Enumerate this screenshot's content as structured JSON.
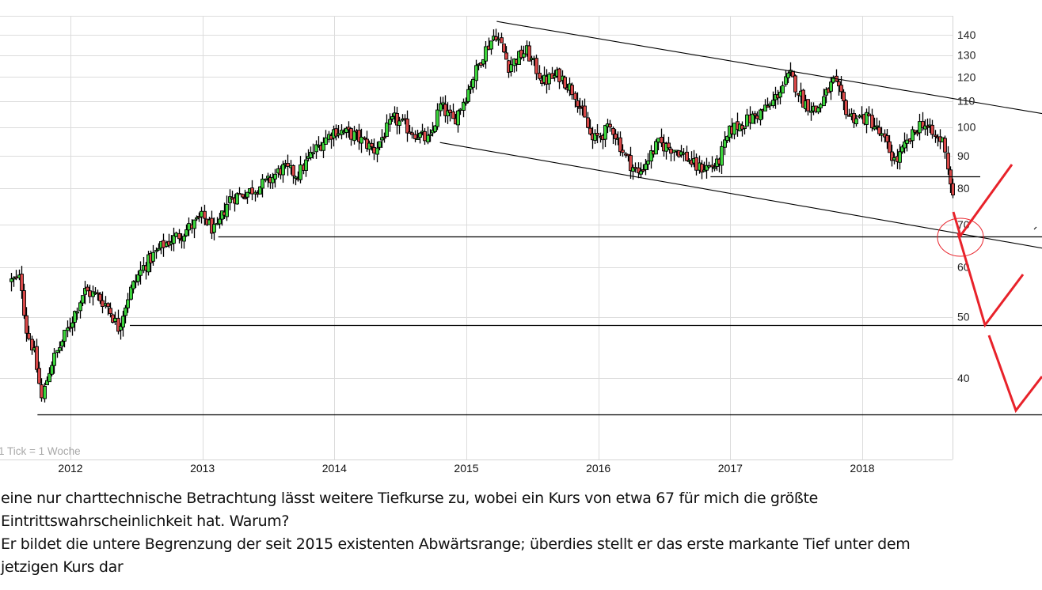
{
  "chart_data": {
    "type": "candlestick",
    "title": "",
    "xlabel": "",
    "ylabel": "",
    "note": "1 Tick = 1 Woche",
    "x_ticks": [
      "2012",
      "2013",
      "2014",
      "2015",
      "2016",
      "2017",
      "2018"
    ],
    "y_ticks": [
      40,
      50,
      60,
      70,
      80,
      90,
      100,
      110,
      120,
      130,
      140
    ],
    "y_scale": "log",
    "ylim": [
      33,
      148
    ],
    "grid": true,
    "colors": {
      "up": "#3cd43c",
      "down": "#d84848",
      "grid": "#dcdcdc",
      "annotation": "#e8222a",
      "line": "#000000"
    },
    "approx_weekly_closes": [
      {
        "t": 2011.55,
        "v": 57
      },
      {
        "t": 2011.62,
        "v": 57.5
      },
      {
        "t": 2011.66,
        "v": 48
      },
      {
        "t": 2011.72,
        "v": 44
      },
      {
        "t": 2011.78,
        "v": 37
      },
      {
        "t": 2011.85,
        "v": 42
      },
      {
        "t": 2011.92,
        "v": 45
      },
      {
        "t": 2012.0,
        "v": 49
      },
      {
        "t": 2012.1,
        "v": 55
      },
      {
        "t": 2012.2,
        "v": 54
      },
      {
        "t": 2012.28,
        "v": 52
      },
      {
        "t": 2012.36,
        "v": 48
      },
      {
        "t": 2012.45,
        "v": 55
      },
      {
        "t": 2012.55,
        "v": 60
      },
      {
        "t": 2012.7,
        "v": 65
      },
      {
        "t": 2012.85,
        "v": 68
      },
      {
        "t": 2013.0,
        "v": 72
      },
      {
        "t": 2013.1,
        "v": 68
      },
      {
        "t": 2013.2,
        "v": 77
      },
      {
        "t": 2013.35,
        "v": 79
      },
      {
        "t": 2013.5,
        "v": 82
      },
      {
        "t": 2013.6,
        "v": 86
      },
      {
        "t": 2013.72,
        "v": 84
      },
      {
        "t": 2013.85,
        "v": 92
      },
      {
        "t": 2014.0,
        "v": 99
      },
      {
        "t": 2014.15,
        "v": 97
      },
      {
        "t": 2014.3,
        "v": 92
      },
      {
        "t": 2014.45,
        "v": 103
      },
      {
        "t": 2014.6,
        "v": 98
      },
      {
        "t": 2014.72,
        "v": 95
      },
      {
        "t": 2014.8,
        "v": 108
      },
      {
        "t": 2014.9,
        "v": 102
      },
      {
        "t": 2015.0,
        "v": 113
      },
      {
        "t": 2015.12,
        "v": 130
      },
      {
        "t": 2015.22,
        "v": 141
      },
      {
        "t": 2015.32,
        "v": 125
      },
      {
        "t": 2015.45,
        "v": 132
      },
      {
        "t": 2015.58,
        "v": 118
      },
      {
        "t": 2015.7,
        "v": 121
      },
      {
        "t": 2015.82,
        "v": 113
      },
      {
        "t": 2015.95,
        "v": 95
      },
      {
        "t": 2016.1,
        "v": 100
      },
      {
        "t": 2016.2,
        "v": 90
      },
      {
        "t": 2016.3,
        "v": 84
      },
      {
        "t": 2016.45,
        "v": 94
      },
      {
        "t": 2016.6,
        "v": 92
      },
      {
        "t": 2016.75,
        "v": 86
      },
      {
        "t": 2016.9,
        "v": 87
      },
      {
        "t": 2017.0,
        "v": 99
      },
      {
        "t": 2017.15,
        "v": 103
      },
      {
        "t": 2017.3,
        "v": 108
      },
      {
        "t": 2017.45,
        "v": 121
      },
      {
        "t": 2017.55,
        "v": 110
      },
      {
        "t": 2017.65,
        "v": 106
      },
      {
        "t": 2017.78,
        "v": 118
      },
      {
        "t": 2017.9,
        "v": 104
      },
      {
        "t": 2018.05,
        "v": 103
      },
      {
        "t": 2018.15,
        "v": 96
      },
      {
        "t": 2018.25,
        "v": 88
      },
      {
        "t": 2018.35,
        "v": 95
      },
      {
        "t": 2018.45,
        "v": 102
      },
      {
        "t": 2018.55,
        "v": 96
      },
      {
        "t": 2018.62,
        "v": 95
      },
      {
        "t": 2018.66,
        "v": 82
      },
      {
        "t": 2018.7,
        "v": 77
      }
    ],
    "annotations": {
      "horizontal_lines": [
        {
          "label": "support-35",
          "value": 35,
          "from": 2011.75
        },
        {
          "label": "support-48",
          "value": 48.5,
          "from": 2012.45
        },
        {
          "label": "support-67",
          "value": 67,
          "from": 2013.12
        },
        {
          "label": "support-83",
          "value": 83.5,
          "from": 2016.85
        }
      ],
      "trend_lines": [
        {
          "label": "upper-channel",
          "from": {
            "t": 2015.23,
            "v": 147
          },
          "to": {
            "t": 2019.6,
            "v": 103
          }
        },
        {
          "label": "lower-channel",
          "from": {
            "t": 2014.8,
            "v": 94.5
          },
          "to": {
            "t": 2019.6,
            "v": 63
          }
        }
      ],
      "target_circle": {
        "t": 2018.75,
        "v": 67
      },
      "projection_zigzag": "red hand-drawn projection: drop to ~67, up, drop to ~49, up, drop to ~35, up"
    }
  },
  "caption": {
    "lines": [
      "eine nur charttechnische Betrachtung lässt weitere Tiefkurse zu, wobei ein Kurs von etwa 67 für mich die größte",
      "Eintrittswahrscheinlichkeit hat. Warum?",
      "Er bildet die untere Begrenzung der seit 2015 existenten Abwärtsrange; überdies stellt er das erste markante Tief unter dem",
      "jetzigen Kurs dar"
    ]
  }
}
